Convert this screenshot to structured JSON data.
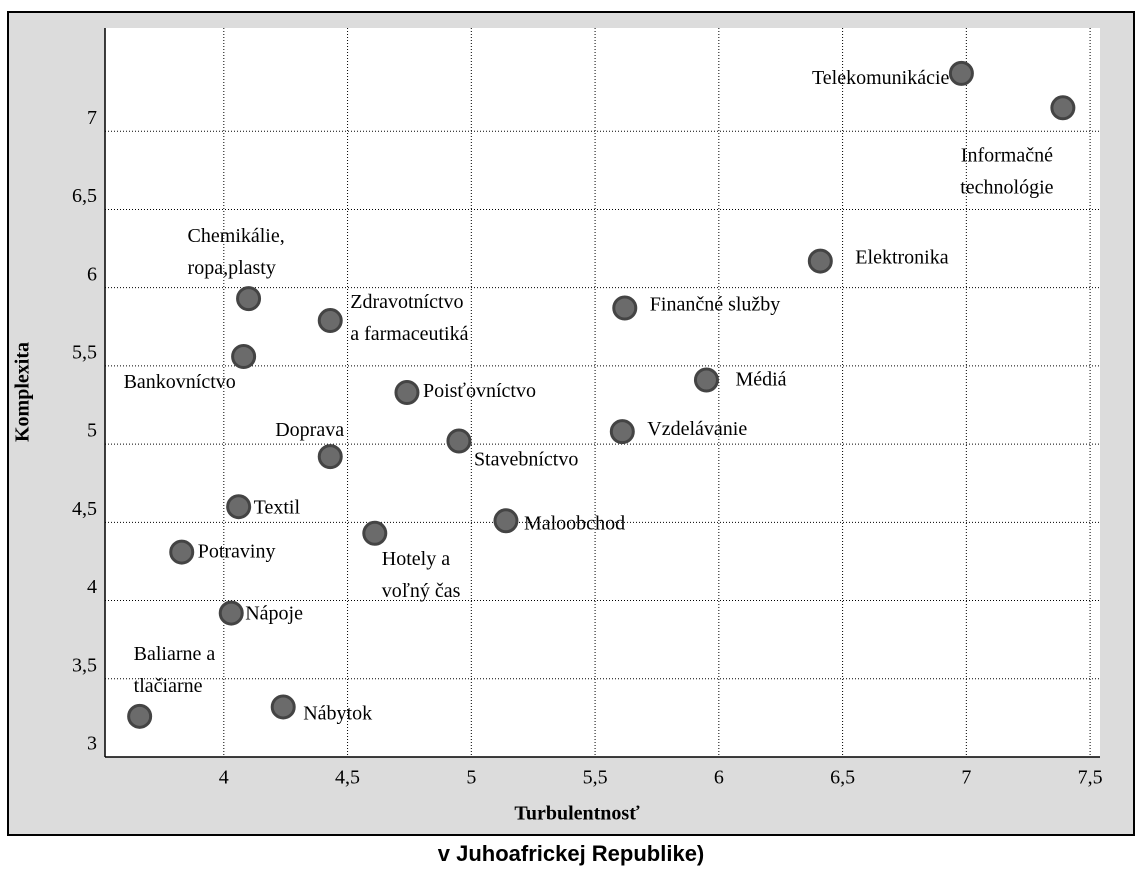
{
  "chart_data": {
    "type": "scatter",
    "xlabel": "Turbulentnosť",
    "ylabel": "Komplexita",
    "caption": "v Juhoafrickej Republike)",
    "xlim": [
      3.52,
      7.54
    ],
    "ylim": [
      3,
      7.66
    ],
    "xticks": [
      4,
      {
        "value": 4.5,
        "label": "4,5"
      },
      5,
      {
        "value": 5.5,
        "label": "5,5"
      },
      6,
      {
        "value": 6.5,
        "label": "6,5"
      },
      7,
      {
        "value": 7.5,
        "label": "7,5"
      }
    ],
    "yticks": [
      3,
      {
        "value": 3.5,
        "label": "3,5"
      },
      4,
      {
        "value": 4.5,
        "label": "4,5"
      },
      5,
      {
        "value": 5.5,
        "label": "5,5"
      },
      6,
      {
        "value": 6.5,
        "label": "6,5"
      },
      7
    ],
    "grid": true,
    "color": "#6b6b6b",
    "labels": [
      [
        "Telekomunikácie"
      ],
      [
        "Informačné",
        "technológie"
      ],
      [
        "Elektronika"
      ],
      [
        "Finančné služby"
      ],
      [
        "Médiá"
      ],
      [
        "Vzdelávanie"
      ],
      [
        "Stavebníctvo"
      ],
      [
        "Poisťovníctvo"
      ],
      [
        "Zdravotníctvo",
        "a farmaceutiká"
      ],
      [
        "Chemikálie,",
        "ropa,plasty"
      ],
      [
        "Bankovníctvo"
      ],
      [
        "Doprava"
      ],
      [
        "Textil"
      ],
      [
        "Potraviny"
      ],
      [
        "Hotely a",
        "voľný čas"
      ],
      [
        "Maloobchod"
      ],
      [
        "Nápoje"
      ],
      [
        "Baliarne a",
        "tlačiarne"
      ],
      [
        "Nábytok"
      ]
    ],
    "x": [
      6.98,
      7.39,
      6.41,
      5.62,
      5.95,
      5.61,
      4.95,
      4.74,
      4.43,
      4.1,
      4.08,
      4.43,
      4.06,
      3.83,
      4.61,
      5.14,
      4.03,
      3.66,
      4.24
    ],
    "values": [
      7.37,
      7.15,
      6.17,
      5.87,
      5.41,
      5.08,
      5.02,
      5.33,
      5.79,
      5.93,
      5.56,
      4.92,
      4.6,
      4.31,
      4.43,
      4.51,
      3.92,
      3.26,
      3.32
    ]
  }
}
